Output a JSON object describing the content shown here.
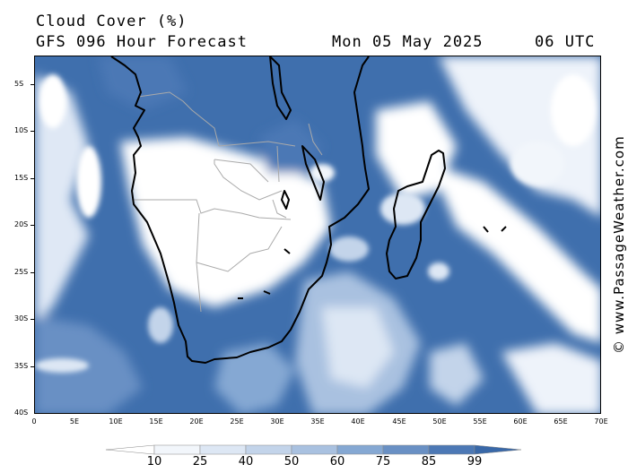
{
  "header": {
    "title": "Cloud Cover (%)",
    "subtitle": "GFS 096 Hour Forecast",
    "date": "Mon 05 May 2025",
    "time": "06 UTC"
  },
  "credit": "© www.PassageWeather.com",
  "map": {
    "lat_ticks": [
      "5S",
      "10S",
      "15S",
      "20S",
      "25S",
      "30S",
      "35S",
      "40S"
    ],
    "lon_ticks": [
      "0",
      "5E",
      "10E",
      "15E",
      "20E",
      "25E",
      "30E",
      "35E",
      "40E",
      "45E",
      "50E",
      "55E",
      "60E",
      "65E",
      "70E"
    ],
    "ocean_color": "#3f6fad",
    "coast_color": "#000000",
    "border_color": "#aaaaaa"
  },
  "legend": {
    "labels": [
      "10",
      "25",
      "40",
      "50",
      "60",
      "75",
      "85",
      "99"
    ],
    "colors": [
      "#ffffff",
      "#f2f6fb",
      "#dde7f4",
      "#c3d4ea",
      "#a9c1e0",
      "#85a8d3",
      "#6990c4",
      "#4c78b5",
      "#3968a8"
    ]
  }
}
